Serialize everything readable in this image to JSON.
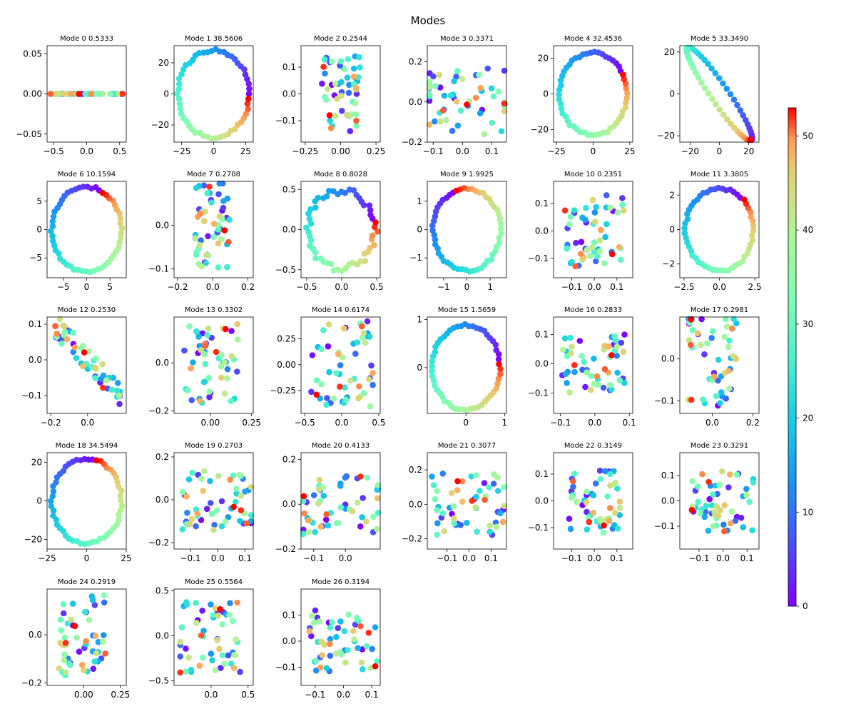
{
  "figure": {
    "title": "Modes"
  },
  "colorbar": {
    "min": 0,
    "max": 53,
    "ticks": [
      0,
      10,
      20,
      30,
      40,
      50
    ],
    "colormap": "rainbow"
  },
  "chart_data": [
    {
      "type": "scatter",
      "title": "Mode 0 0.5333",
      "seed": 101,
      "shape": "flat",
      "amp": 0.55,
      "xlim": [
        -0.6,
        0.6
      ],
      "ylim": [
        -0.06,
        0.06
      ],
      "xticks": [
        -0.5,
        0,
        0.5
      ],
      "yticks": [
        -0.05,
        0,
        0.05
      ],
      "xticklabels": [
        "−0.5",
        "0.0",
        "0.5"
      ],
      "yticklabels": [
        "−0.05",
        "0.00",
        "0.05"
      ]
    },
    {
      "type": "scatter",
      "title": "Mode 1 38.5606",
      "seed": 102,
      "shape": "ring",
      "amp": 28,
      "phase": 0,
      "xlim": [
        -31,
        31
      ],
      "ylim": [
        -31,
        31
      ],
      "xticks": [
        -25,
        0,
        25
      ],
      "yticks": [
        -20,
        0,
        20
      ],
      "xticklabels": [
        "−25",
        "0",
        "25"
      ],
      "yticklabels": [
        "−20",
        "0",
        "20"
      ]
    },
    {
      "type": "scatter",
      "title": "Mode 2 0.2544",
      "seed": 103,
      "shape": "cloud",
      "amp": 0.14,
      "xlim": [
        -0.28,
        0.28
      ],
      "ylim": [
        -0.18,
        0.18
      ],
      "xticks": [
        -0.25,
        0,
        0.25
      ],
      "yticks": [
        -0.1,
        0,
        0.1
      ],
      "xticklabels": [
        "−0.25",
        "0.00",
        "0.25"
      ],
      "yticklabels": [
        "−0.1",
        "0.0",
        "0.1"
      ]
    },
    {
      "type": "scatter",
      "title": "Mode 3 0.3371",
      "seed": 104,
      "shape": "cloud",
      "amp": 0.17,
      "xlim": [
        -0.12,
        0.15
      ],
      "ylim": [
        -0.2,
        0.28
      ],
      "xticks": [
        -0.1,
        0,
        0.1
      ],
      "yticks": [
        -0.2,
        0,
        0.2
      ],
      "xticklabels": [
        "−0.1",
        "0.0",
        "0.1"
      ],
      "yticklabels": [
        "−0.2",
        "0.0",
        "0.2"
      ]
    },
    {
      "type": "scatter",
      "title": "Mode 4 32.4536",
      "seed": 105,
      "shape": "ring",
      "amp": 23,
      "phase": 0.6,
      "xlim": [
        -27,
        27
      ],
      "ylim": [
        -27,
        27
      ],
      "xticks": [
        -25,
        0,
        25
      ],
      "yticks": [
        -20,
        0,
        20
      ],
      "xticklabels": [
        "−25",
        "0",
        "25"
      ],
      "yticklabels": [
        "−20",
        "0",
        "20"
      ]
    },
    {
      "type": "scatter",
      "title": "Mode 5 33.3490",
      "seed": 106,
      "shape": "ellipse",
      "amp": 24,
      "phase": 0,
      "xlim": [
        -27,
        27
      ],
      "ylim": [
        -23,
        23
      ],
      "xticks": [
        -20,
        0,
        20
      ],
      "yticks": [
        -20,
        0,
        20
      ],
      "xticklabels": [
        "−20",
        "0",
        "20"
      ],
      "yticklabels": [
        "−20",
        "0",
        "20"
      ]
    },
    {
      "type": "scatter",
      "title": "Mode 6 10.1594",
      "seed": 107,
      "shape": "ring",
      "amp": 7.5,
      "phase": 1.2,
      "xlim": [
        -8.5,
        8.5
      ],
      "ylim": [
        -8.5,
        8.5
      ],
      "xticks": [
        -5,
        0,
        5
      ],
      "yticks": [
        -5,
        0,
        5
      ],
      "xticklabels": [
        "−5",
        "0",
        "5"
      ],
      "yticklabels": [
        "−5",
        "0",
        "5"
      ]
    },
    {
      "type": "scatter",
      "title": "Mode 7 0.2708",
      "seed": 108,
      "shape": "cloud",
      "amp": 0.1,
      "xlim": [
        -0.22,
        0.23
      ],
      "ylim": [
        -0.12,
        0.1
      ],
      "xticks": [
        -0.2,
        0,
        0.2
      ],
      "yticks": [
        -0.1,
        0
      ],
      "xticklabels": [
        "−0.2",
        "0.0",
        "0.2"
      ],
      "yticklabels": [
        "−0.1",
        "0.0"
      ]
    },
    {
      "type": "scatter",
      "title": "Mode 8 0.8028",
      "seed": 109,
      "shape": "ring",
      "amp": 0.48,
      "phase": 0.3,
      "noise": 0.18,
      "xlim": [
        -0.58,
        0.55
      ],
      "ylim": [
        -0.6,
        0.6
      ],
      "xticks": [
        -0.5,
        0,
        0.5
      ],
      "yticks": [
        -0.5,
        0,
        0.5
      ],
      "xticklabels": [
        "−0.5",
        "0.0",
        "0.5"
      ],
      "yticklabels": [
        "−0.5",
        "0.0",
        "0.5"
      ]
    },
    {
      "type": "scatter",
      "title": "Mode 9 1.9925",
      "seed": 110,
      "shape": "ring",
      "amp": 1.45,
      "phase": 2.0,
      "xlim": [
        -1.7,
        1.7
      ],
      "ylim": [
        -1.7,
        1.7
      ],
      "xticks": [
        -1,
        0,
        1
      ],
      "yticks": [
        -1,
        0,
        1
      ],
      "xticklabels": [
        "−1",
        "0",
        "1"
      ],
      "yticklabels": [
        "−1",
        "0",
        "1"
      ]
    },
    {
      "type": "scatter",
      "title": "Mode 10 0.2351",
      "seed": 111,
      "shape": "cloud",
      "amp": 0.13,
      "xlim": [
        -0.18,
        0.17
      ],
      "ylim": [
        -0.17,
        0.18
      ],
      "xticks": [
        -0.1,
        0,
        0.1
      ],
      "yticks": [
        -0.1,
        0,
        0.1
      ],
      "xticklabels": [
        "−0.1",
        "0.0",
        "0.1"
      ],
      "yticklabels": [
        "−0.1",
        "0.0",
        "0.1"
      ]
    },
    {
      "type": "scatter",
      "title": "Mode 11 3.3805",
      "seed": 112,
      "shape": "ring",
      "amp": 2.4,
      "phase": 0.9,
      "xlim": [
        -2.8,
        2.8
      ],
      "ylim": [
        -2.8,
        2.8
      ],
      "xticks": [
        -2.5,
        0,
        2.5
      ],
      "yticks": [
        -2,
        0,
        2
      ],
      "xticklabels": [
        "−2.5",
        "0.0",
        "2.5"
      ],
      "yticklabels": [
        "−2",
        "0",
        "2"
      ]
    },
    {
      "type": "scatter",
      "title": "Mode 12 0.2530",
      "seed": 113,
      "shape": "band",
      "amp": 0.11,
      "xlim": [
        -0.22,
        0.21
      ],
      "ylim": [
        -0.15,
        0.12
      ],
      "xticks": [
        -0.2,
        0
      ],
      "yticks": [
        -0.1,
        0,
        0.1
      ],
      "xticklabels": [
        "−0.2",
        "0.0"
      ],
      "yticklabels": [
        "−0.1",
        "0.0",
        "0.1"
      ]
    },
    {
      "type": "scatter",
      "title": "Mode 13 0.3302",
      "seed": 114,
      "shape": "cloud",
      "amp": 0.17,
      "xlim": [
        -0.22,
        0.26
      ],
      "ylim": [
        -0.21,
        0.19
      ],
      "xticks": [
        0,
        0.25
      ],
      "yticks": [
        -0.2,
        0
      ],
      "xticklabels": [
        "0.00",
        "0.25"
      ],
      "yticklabels": [
        "−0.2",
        "0.0"
      ]
    },
    {
      "type": "scatter",
      "title": "Mode 14 0.6174",
      "seed": 115,
      "shape": "cloud",
      "amp": 0.42,
      "xlim": [
        -0.55,
        0.52
      ],
      "ylim": [
        -0.47,
        0.46
      ],
      "xticks": [
        -0.5,
        0,
        0.5
      ],
      "yticks": [
        -0.25,
        0,
        0.25
      ],
      "xticklabels": [
        "−0.5",
        "0.0",
        "0.5"
      ],
      "yticklabels": [
        "−0.25",
        "0.00",
        "0.25"
      ]
    },
    {
      "type": "scatter",
      "title": "Mode 15 1.5659",
      "seed": 116,
      "shape": "ring",
      "amp": 0.88,
      "phase": 0.2,
      "xlim": [
        -1.0,
        1.05
      ],
      "ylim": [
        -0.95,
        1.05
      ],
      "xticks": [
        0,
        1
      ],
      "yticks": [
        0,
        1
      ],
      "xticklabels": [
        "0",
        "1"
      ],
      "yticklabels": [
        "0",
        "1"
      ]
    },
    {
      "type": "scatter",
      "title": "Mode 16 0.2833",
      "seed": 117,
      "shape": "cloud",
      "amp": 0.1,
      "xlim": [
        -0.12,
        0.11
      ],
      "ylim": [
        -0.17,
        0.16
      ],
      "xticks": [
        -0.1,
        0,
        0.1
      ],
      "yticks": [
        -0.1,
        0,
        0.1
      ],
      "xticklabels": [
        "−0.1",
        "0.0",
        "0.1"
      ],
      "yticklabels": [
        "−0.1",
        "0.0",
        "0.1"
      ]
    },
    {
      "type": "scatter",
      "title": "Mode 17 0.2981",
      "seed": 118,
      "shape": "cloud",
      "amp": 0.12,
      "xlim": [
        -0.16,
        0.23
      ],
      "ylim": [
        -0.13,
        0.1
      ],
      "xticks": [
        0,
        0.2
      ],
      "yticks": [
        -0.1,
        0
      ],
      "xticklabels": [
        "0.0",
        "0.2"
      ],
      "yticklabels": [
        "−0.1",
        "0.0"
      ]
    },
    {
      "type": "scatter",
      "title": "Mode 18 34.5494",
      "seed": 119,
      "shape": "ring",
      "amp": 22,
      "phase": 1.4,
      "xlim": [
        -25,
        25
      ],
      "ylim": [
        -25,
        25
      ],
      "xticks": [
        -25,
        0,
        25
      ],
      "yticks": [
        -20,
        0,
        20
      ],
      "xticklabels": [
        "−25",
        "0",
        "25"
      ],
      "yticklabels": [
        "−20",
        "0",
        "20"
      ]
    },
    {
      "type": "scatter",
      "title": "Mode 19 0.2703",
      "seed": 120,
      "shape": "cloud",
      "amp": 0.14,
      "xlim": [
        -0.16,
        0.13
      ],
      "ylim": [
        -0.23,
        0.22
      ],
      "xticks": [
        -0.1,
        0,
        0.1
      ],
      "yticks": [
        -0.2,
        0,
        0.2
      ],
      "xticklabels": [
        "−0.1",
        "0.0",
        "0.1"
      ],
      "yticklabels": [
        "−0.2",
        "0.0",
        "0.2"
      ]
    },
    {
      "type": "scatter",
      "title": "Mode 20 0.4133",
      "seed": 121,
      "shape": "cloud",
      "amp": 0.14,
      "xlim": [
        -0.14,
        0.11
      ],
      "ylim": [
        -0.2,
        0.23
      ],
      "xticks": [
        -0.1,
        0
      ],
      "yticks": [
        -0.2,
        0,
        0.2
      ],
      "xticklabels": [
        "−0.1",
        "0.0"
      ],
      "yticklabels": [
        "−0.2",
        "0.0",
        "0.2"
      ]
    },
    {
      "type": "scatter",
      "title": "Mode 21 0.3077",
      "seed": 122,
      "shape": "cloud",
      "amp": 0.18,
      "xlim": [
        -0.19,
        0.17
      ],
      "ylim": [
        -0.26,
        0.3
      ],
      "xticks": [
        -0.1,
        0,
        0.1
      ],
      "yticks": [
        -0.2,
        0,
        0.2
      ],
      "xticklabels": [
        "−0.1",
        "0.0",
        "0.1"
      ],
      "yticklabels": [
        "−0.2",
        "0.0",
        "0.2"
      ]
    },
    {
      "type": "scatter",
      "title": "Mode 22 0.3149",
      "seed": 123,
      "shape": "cloud",
      "amp": 0.12,
      "xlim": [
        -0.18,
        0.17
      ],
      "ylim": [
        -0.18,
        0.18
      ],
      "xticks": [
        -0.1,
        0,
        0.1
      ],
      "yticks": [
        -0.1,
        0,
        0.1
      ],
      "xticklabels": [
        "−0.1",
        "0.0",
        "0.1"
      ],
      "yticklabels": [
        "−0.1",
        "0.0",
        "0.1"
      ]
    },
    {
      "type": "scatter",
      "title": "Mode 23 0.3291",
      "seed": 124,
      "shape": "cloud",
      "amp": 0.13,
      "xlim": [
        -0.18,
        0.15
      ],
      "ylim": [
        -0.19,
        0.19
      ],
      "xticks": [
        -0.1,
        0,
        0.1
      ],
      "yticks": [
        -0.1,
        0,
        0.1
      ],
      "xticklabels": [
        "−0.1",
        "0.0",
        "0.1"
      ],
      "yticklabels": [
        "−0.1",
        "0.0",
        "0.1"
      ]
    },
    {
      "type": "scatter",
      "title": "Mode 24 0.2919",
      "seed": 125,
      "shape": "cloud",
      "amp": 0.17,
      "xlim": [
        -0.25,
        0.29
      ],
      "ylim": [
        -0.21,
        0.19
      ],
      "xticks": [
        0,
        0.25
      ],
      "yticks": [
        -0.2,
        0
      ],
      "xticklabels": [
        "0.00",
        "0.25"
      ],
      "yticklabels": [
        "−0.2",
        "0.0"
      ]
    },
    {
      "type": "scatter",
      "title": "Mode 25 0.5564",
      "seed": 126,
      "shape": "cloud",
      "amp": 0.42,
      "xlim": [
        -0.5,
        0.57
      ],
      "ylim": [
        -0.55,
        0.52
      ],
      "xticks": [
        0,
        0.5
      ],
      "yticks": [
        -0.5,
        0,
        0.5
      ],
      "xticklabels": [
        "0.0",
        "0.5"
      ],
      "yticklabels": [
        "−0.5",
        "0.0",
        "0.5"
      ]
    },
    {
      "type": "scatter",
      "title": "Mode 26 0.3194",
      "seed": 127,
      "shape": "cloud",
      "amp": 0.12,
      "xlim": [
        -0.15,
        0.13
      ],
      "ylim": [
        -0.17,
        0.2
      ],
      "xticks": [
        -0.1,
        0,
        0.1
      ],
      "yticks": [
        -0.1,
        0,
        0.1
      ],
      "xticklabels": [
        "−0.1",
        "0.0",
        "0.1"
      ],
      "yticklabels": [
        "−0.1",
        "0.0",
        "0.1"
      ]
    }
  ]
}
